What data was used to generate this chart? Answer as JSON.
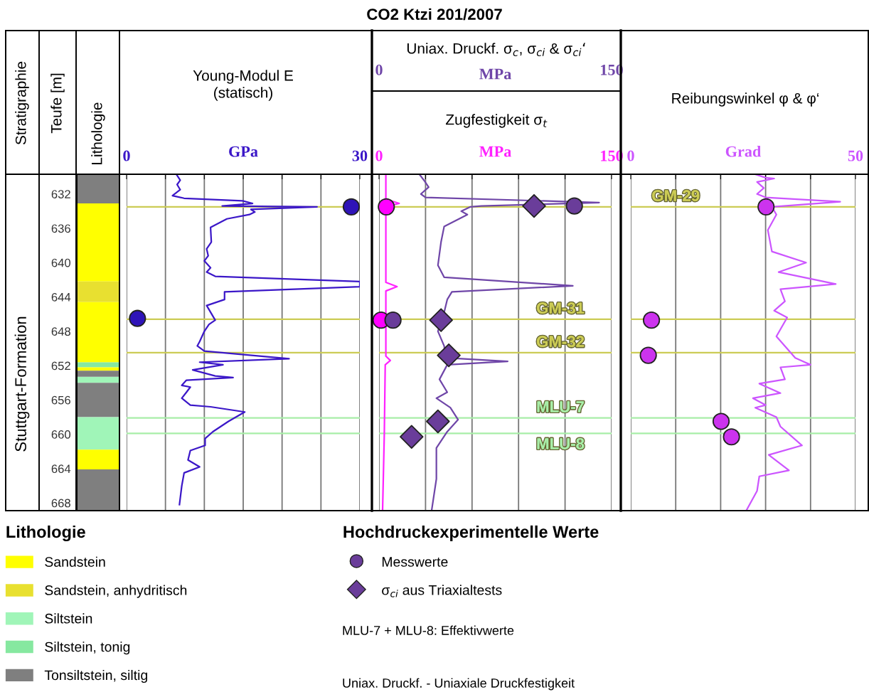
{
  "chart_data": [
    {
      "type": "bar",
      "title": "Lithologie",
      "ylabel": "Teufe [m]",
      "annotations": [
        "Stratigraphie",
        "Stuttgart-Formation"
      ],
      "categories": [
        null
      ],
      "ylim": [
        668.9,
        629.7
      ],
      "yticks": [
        632,
        636,
        640,
        644,
        648,
        652,
        656,
        660,
        664,
        668
      ],
      "tick_labels": "y",
      "legend": "bottom",
      "legend_title": "Lithologie",
      "series": [
        {
          "name": "Sandstein",
          "color": "#ffff00",
          "values": [
            9.1
          ],
          "base": [
            633.1
          ]
        },
        {
          "name": "Sandstein, anhydritisch",
          "color": "#e8e030",
          "values": [
            2.4
          ],
          "base": [
            642.2
          ]
        },
        {
          "name": "Siltstein",
          "color": "#a0f5b8",
          "values": [
            0.7
          ],
          "base": [
            653.3
          ]
        },
        {
          "name": "Siltstein, tonig",
          "color": "#86e8a0",
          "values": [
            0.6
          ],
          "base": [
            651.6
          ]
        },
        {
          "name": "Tonsiltstein, siltig",
          "color": "#7f7f7f",
          "values": [
            3.4
          ],
          "base": [
            629.7
          ]
        },
        {
          "color": "#ffff00",
          "values": [
            7.0
          ],
          "base": [
            644.6
          ]
        },
        {
          "color": "#ffff00",
          "values": [
            0.4
          ],
          "base": [
            652.2
          ]
        },
        {
          "color": "#7f7f7f",
          "values": [
            0.7
          ],
          "base": [
            652.6
          ]
        },
        {
          "color": "#7f7f7f",
          "values": [
            4.0
          ],
          "base": [
            654.0
          ]
        },
        {
          "color": "#a0f5b8",
          "values": [
            3.8
          ],
          "base": [
            658.0
          ]
        },
        {
          "color": "#ffff00",
          "values": [
            2.3
          ],
          "base": [
            661.8
          ]
        },
        {
          "color": "#7f7f7f",
          "values": [
            4.8
          ],
          "base": [
            664.1
          ]
        }
      ]
    },
    {
      "type": "line",
      "orientation": "horizontal",
      "title": "Young-Modul E\n(statisch)",
      "xlabel": "GPa",
      "xlim": [
        0,
        30
      ],
      "xticks": [
        0,
        {
          "value": 5,
          "label": null
        },
        {
          "value": 10,
          "label": null
        },
        {
          "value": 15,
          "label": null
        },
        {
          "value": 20,
          "label": null
        },
        {
          "value": 25,
          "label": null
        },
        30
      ],
      "ylim": [
        668.9,
        629.7
      ],
      "yticks": [
        632,
        636,
        640,
        644,
        648,
        652,
        656,
        660,
        664,
        668
      ],
      "tick_labels": "x",
      "grid": "x",
      "ref_lines": [
        {
          "axis": "y",
          "value": 633.5,
          "color": "#cccc55"
        },
        {
          "axis": "y",
          "value": 646.6,
          "color": "#cccc55"
        },
        {
          "axis": "y",
          "value": 650.5,
          "color": "#cccc55"
        },
        {
          "axis": "y",
          "value": 658.1,
          "color": "#a8eea8"
        },
        {
          "axis": "y",
          "value": 659.9,
          "color": "#a8eea8"
        }
      ],
      "series": [
        {
          "type": "line",
          "color": "#3b17c8",
          "x": [
            629.7,
            630.4,
            630.9,
            631.5,
            632.2,
            632.5,
            632.8,
            633.1,
            633.4,
            633.5,
            633.8,
            634.1,
            634.4,
            634.9,
            635.9,
            637.6,
            638.4,
            639.2,
            639.8,
            640.6,
            641.1,
            641.6,
            642.2,
            642.8,
            643.4,
            644.3,
            645.0,
            646.7,
            647.2,
            648.0,
            649.2,
            649.7,
            650.3,
            651.2,
            651.6,
            651.9,
            652.5,
            653.2,
            653.4,
            653.7,
            654.3,
            654.5,
            655.1,
            655.8,
            656.6,
            656.8,
            657.4,
            658.5,
            659.7,
            660.5,
            661.3,
            661.9,
            663.0,
            663.8,
            664.5,
            666.0,
            668.2
          ],
          "values": [
            6.4,
            6.9,
            6.5,
            6.9,
            5.9,
            7.4,
            14.9,
            16.2,
            12.3,
            24.5,
            16.0,
            16.5,
            15.8,
            12.9,
            10.8,
            10.9,
            10.3,
            10.5,
            10.0,
            10.8,
            10.3,
            11.4,
            30.0,
            30.0,
            12.6,
            12.6,
            10.3,
            11.4,
            10.6,
            10.0,
            9.4,
            9.1,
            10.0,
            20.9,
            9.4,
            12.4,
            8.5,
            11.4,
            13.7,
            7.7,
            7.1,
            8.2,
            7.7,
            7.1,
            8.2,
            10.8,
            15.2,
            13.1,
            11.1,
            10.1,
            10.1,
            8.2,
            7.9,
            9.4,
            7.4,
            7.1,
            6.8
          ]
        },
        {
          "type": "scatter",
          "marker": "circle",
          "color": "#2f14b8",
          "x": [
            633.5,
            646.5
          ],
          "values": [
            28.9,
            1.4
          ]
        }
      ]
    },
    {
      "type": "line",
      "orientation": "horizontal",
      "title": "CO2 Ktzi 201/2007",
      "subtitle": "Uniax. Druckf. σ$_{c}$, σ$_{ci}$ & σ$_{ci}$‘",
      "x2label": "MPa",
      "x2lim": [
        0,
        150
      ],
      "x2ticks": [
        0,
        150
      ],
      "xlabel": "MPa",
      "xlim": [
        0,
        150
      ],
      "xticks": [
        0,
        {
          "value": 30,
          "label": null
        },
        {
          "value": 60,
          "label": null
        },
        {
          "value": 90,
          "label": null
        },
        {
          "value": 120,
          "label": null
        },
        150
      ],
      "ylim": [
        668.9,
        629.7
      ],
      "yticks": [
        632,
        636,
        640,
        644,
        648,
        652,
        656,
        660,
        664,
        668
      ],
      "tick_labels": "x",
      "grid": "x",
      "legend": "bottom",
      "legend_title": "Hochdruckexperimentelle Werte",
      "annotations": [
        "Zugfestigkeit σ$_{t}$",
        "MLU-7 + MLU-8: Effektivwerte",
        "Uniax. Druckf. - Uniaxiale Druckfestigkeit"
      ],
      "ref_lines": [
        {
          "axis": "y",
          "value": 633.5,
          "color": "#cccc55"
        },
        {
          "axis": "y",
          "value": 646.6,
          "label": "GM-31",
          "color": "#cccc55"
        },
        {
          "axis": "y",
          "value": 650.5,
          "label": "GM-32",
          "color": "#cccc55"
        },
        {
          "axis": "y",
          "value": 658.1,
          "label": "MLU-7",
          "color": "#a8eea8"
        },
        {
          "axis": "y",
          "value": 659.9,
          "label": "MLU-8",
          "color": "#a8eea8"
        }
      ],
      "series": [
        {
          "type": "line",
          "axis": "x2",
          "color": "#6f46a8",
          "x": [
            629.7,
            630.4,
            631.2,
            632.0,
            632.4,
            633.0,
            633.4,
            633.5,
            634.0,
            634.4,
            635.8,
            637.6,
            640.3,
            641.7,
            642.7,
            643.4,
            644.3,
            645.8,
            648.0,
            649.7,
            651.1,
            651.5,
            651.9,
            653.6,
            655.1,
            655.8,
            656.9,
            658.3,
            659.7,
            661.6,
            665.2,
            668.8
          ],
          "values": [
            26,
            29,
            32,
            27,
            30,
            142,
            66,
            59,
            53,
            57,
            42,
            40,
            38,
            42,
            125,
            47,
            44,
            42,
            38,
            42,
            43,
            83,
            44,
            39,
            44,
            37,
            46,
            51,
            44,
            37,
            37,
            34
          ]
        },
        {
          "type": "line",
          "color": "#ff22ff",
          "x": [
            629.7,
            632.6,
            633.1,
            633.5,
            634.0,
            642.3,
            642.8,
            643.3,
            650.9,
            651.4,
            651.9,
            660.0,
            668.8
          ],
          "values": [
            4.4,
            4.4,
            13.0,
            4.0,
            4.4,
            4.4,
            11.6,
            4.4,
            4.4,
            7.3,
            4.0,
            3.4,
            2.3
          ]
        },
        {
          "type": "scatter",
          "axis": "x2",
          "marker": "circle",
          "name": "Messwerte",
          "color": "#6a3d9a",
          "x": [
            633.4,
            646.7
          ],
          "values": [
            126,
            9
          ]
        },
        {
          "type": "scatter",
          "marker": "circle",
          "color": "#ff00ff",
          "x": [
            633.5,
            646.7
          ],
          "values": [
            4.7,
            1.3
          ]
        },
        {
          "type": "scatter",
          "axis": "x2",
          "marker": "diamond",
          "name": "σ$_{ci}$ aus Triaxialtests",
          "color": "#6a3d9a",
          "x": [
            633.4,
            646.7,
            650.8,
            658.5,
            660.3
          ],
          "values": [
            100,
            40,
            45,
            38,
            21
          ]
        }
      ]
    },
    {
      "type": "line",
      "orientation": "horizontal",
      "title": "Reibungswinkel φ & φ‘",
      "xlabel": "Grad",
      "xlim": [
        0,
        50
      ],
      "xticks": [
        0,
        {
          "value": 10,
          "label": null
        },
        {
          "value": 20,
          "label": null
        },
        {
          "value": 30,
          "label": null
        },
        {
          "value": 40,
          "label": null
        },
        50
      ],
      "ylim": [
        668.9,
        629.7
      ],
      "yticks": [
        632,
        636,
        640,
        644,
        648,
        652,
        656,
        660,
        664,
        668
      ],
      "tick_labels": "x",
      "grid": "x",
      "ref_lines": [
        {
          "axis": "y",
          "value": 633.5,
          "label": "GM-29",
          "color": "#cccc55"
        },
        {
          "axis": "y",
          "value": 646.6,
          "color": "#cccc55"
        },
        {
          "axis": "y",
          "value": 650.5,
          "color": "#cccc55"
        },
        {
          "axis": "y",
          "value": 658.1,
          "color": "#a8eea8"
        },
        {
          "axis": "y",
          "value": 659.9,
          "color": "#a8eea8"
        }
      ],
      "series": [
        {
          "type": "line",
          "color": "#cc55ff",
          "x": [
            629.7,
            630.1,
            630.2,
            630.6,
            631.3,
            632.0,
            632.4,
            632.9,
            633.5,
            634.4,
            636.2,
            638.7,
            640.0,
            641.1,
            642.5,
            643.1,
            644.5,
            645.6,
            646.4,
            648.6,
            651.1,
            651.9,
            652.2,
            653.6,
            654.1,
            655.2,
            655.8,
            656.6,
            656.9,
            658.0,
            659.1,
            661.3,
            662.4,
            664.2,
            664.9,
            666.6,
            668.8
          ],
          "values": [
            27.7,
            30.0,
            31.9,
            28.1,
            29.6,
            28.1,
            30.0,
            46.6,
            31.4,
            32.4,
            30.5,
            31.4,
            39.0,
            32.9,
            45.6,
            33.3,
            34.3,
            31.9,
            34.8,
            32.4,
            36.6,
            40.0,
            33.3,
            34.3,
            28.6,
            33.3,
            27.2,
            30.0,
            27.7,
            32.4,
            33.3,
            38.1,
            30.7,
            35.2,
            28.6,
            28.1,
            25.8
          ]
        },
        {
          "type": "scatter",
          "marker": "circle",
          "color": "#cc33ee",
          "x": [
            633.5,
            646.7,
            650.8,
            658.5,
            660.3
          ],
          "values": [
            30.1,
            4.6,
            3.9,
            20.1,
            22.4
          ]
        }
      ]
    }
  ]
}
